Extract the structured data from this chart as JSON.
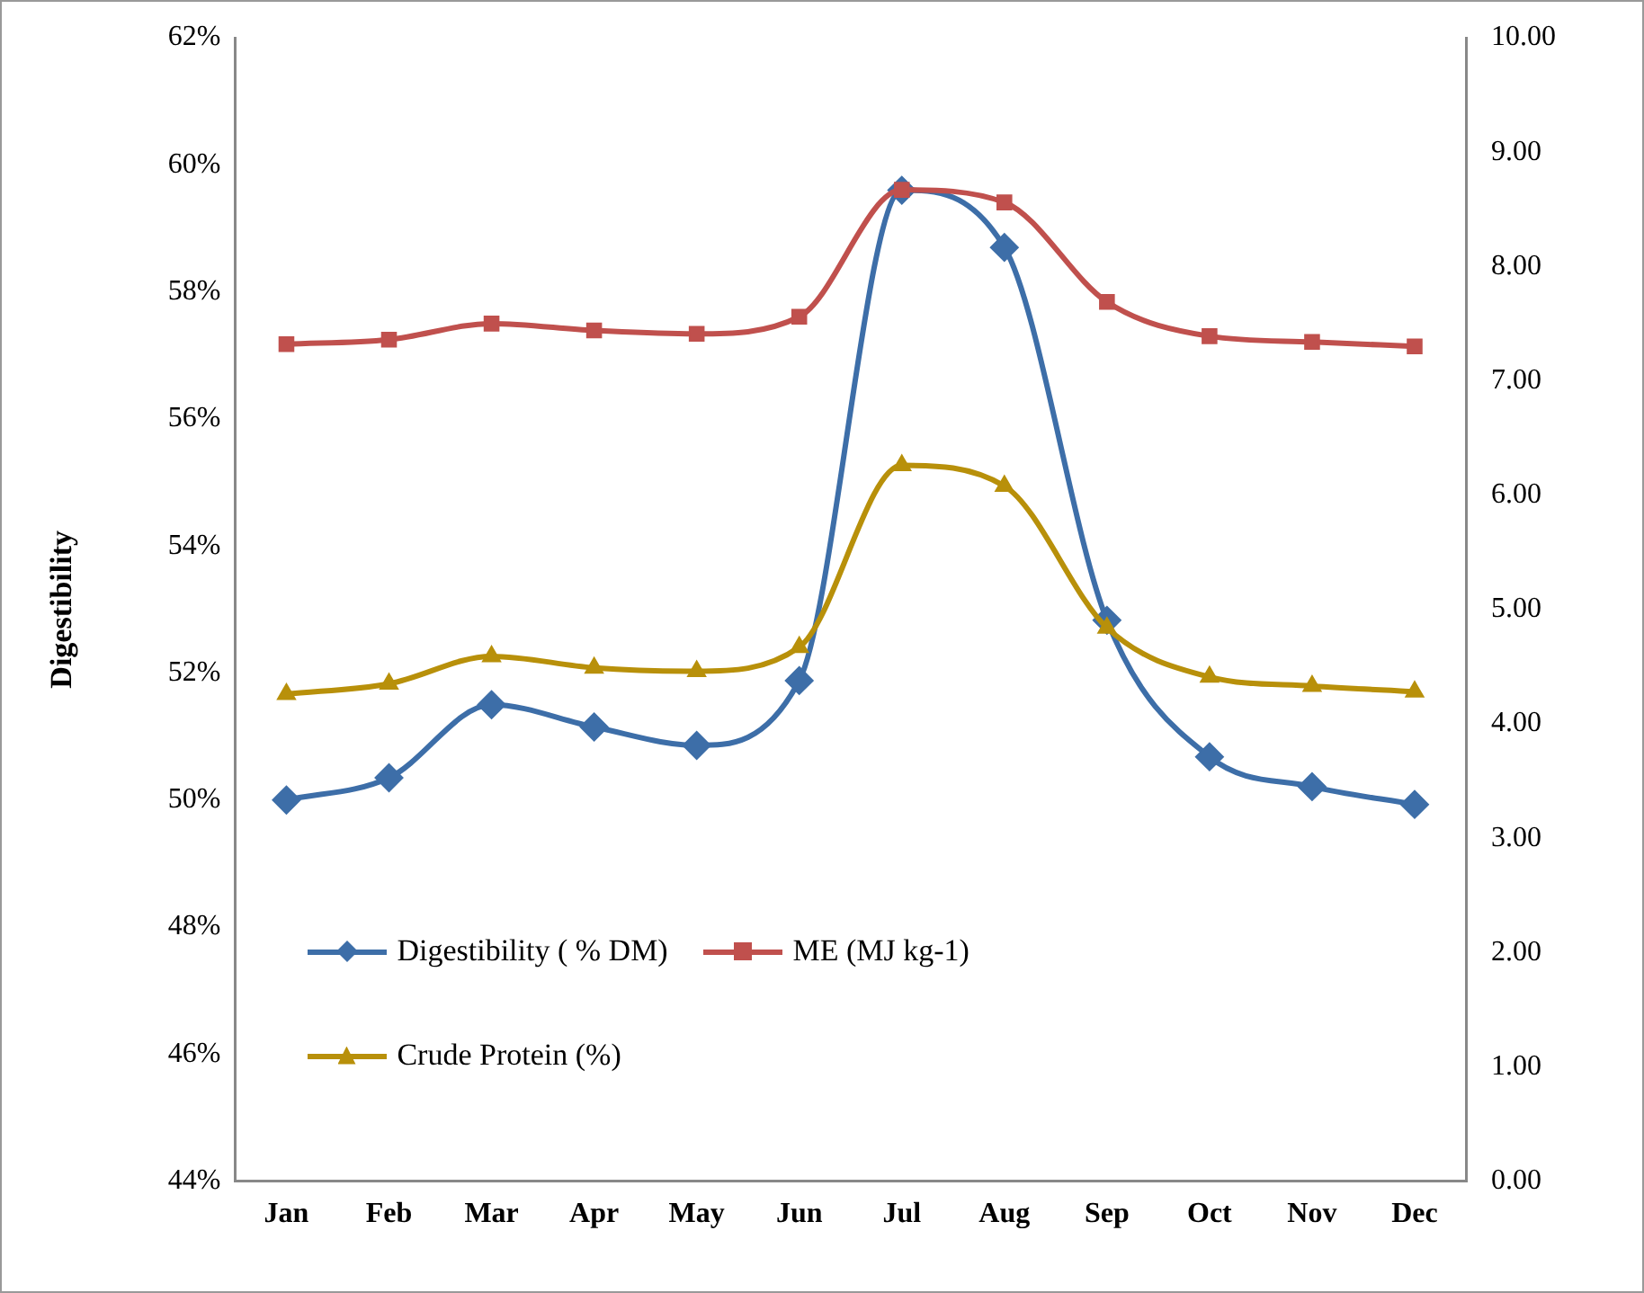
{
  "chart_data": {
    "type": "line",
    "ylabel": "Digestibility",
    "categories": [
      "Jan",
      "Feb",
      "Mar",
      "Apr",
      "May",
      "Jun",
      "Jul",
      "Aug",
      "Sep",
      "Oct",
      "Nov",
      "Dec"
    ],
    "ylim": [
      44,
      62
    ],
    "yticks": [
      {
        "value": 44,
        "label": "44%"
      },
      {
        "value": 46,
        "label": "46%"
      },
      {
        "value": 48,
        "label": "48%"
      },
      {
        "value": 50,
        "label": "50%"
      },
      {
        "value": 52,
        "label": "52%"
      },
      {
        "value": 54,
        "label": "54%"
      },
      {
        "value": 56,
        "label": "56%"
      },
      {
        "value": 58,
        "label": "58%"
      },
      {
        "value": 60,
        "label": "60%"
      },
      {
        "value": 62,
        "label": "62%"
      }
    ],
    "y2lim": [
      0,
      10
    ],
    "y2ticks": [
      {
        "value": 0,
        "label": "0.00"
      },
      {
        "value": 1,
        "label": "1.00"
      },
      {
        "value": 2,
        "label": "2.00"
      },
      {
        "value": 3,
        "label": "3.00"
      },
      {
        "value": 4,
        "label": "4.00"
      },
      {
        "value": 5,
        "label": "5.00"
      },
      {
        "value": 6,
        "label": "6.00"
      },
      {
        "value": 7,
        "label": "7.00"
      },
      {
        "value": 8,
        "label": "8.00"
      },
      {
        "value": 9,
        "label": "9.00"
      },
      {
        "value": 10,
        "label": "10.00"
      }
    ],
    "grid": false,
    "legend": "bottom left",
    "series": [
      {
        "name": "Digestibility ( % DM)",
        "color": "#3d6ea8",
        "marker": "diamond",
        "values": [
          50.0,
          50.35,
          51.5,
          51.15,
          50.86,
          51.88,
          59.6,
          58.7,
          52.83,
          50.68,
          50.21,
          49.93
        ]
      },
      {
        "name": "ME (MJ kg-1)",
        "color": "#c0504d",
        "marker": "square",
        "axis": "y2",
        "values": [
          7.32,
          7.36,
          7.5,
          7.44,
          7.41,
          7.56,
          8.67,
          8.56,
          7.69,
          7.39,
          7.34,
          7.3
        ]
      },
      {
        "name": "Crude Protein (%)",
        "color": "#b8900a",
        "marker": "triangle",
        "axis": "y2",
        "values": [
          4.26,
          4.35,
          4.59,
          4.49,
          4.46,
          4.67,
          6.26,
          6.08,
          4.84,
          4.41,
          4.33,
          4.28
        ]
      }
    ]
  }
}
